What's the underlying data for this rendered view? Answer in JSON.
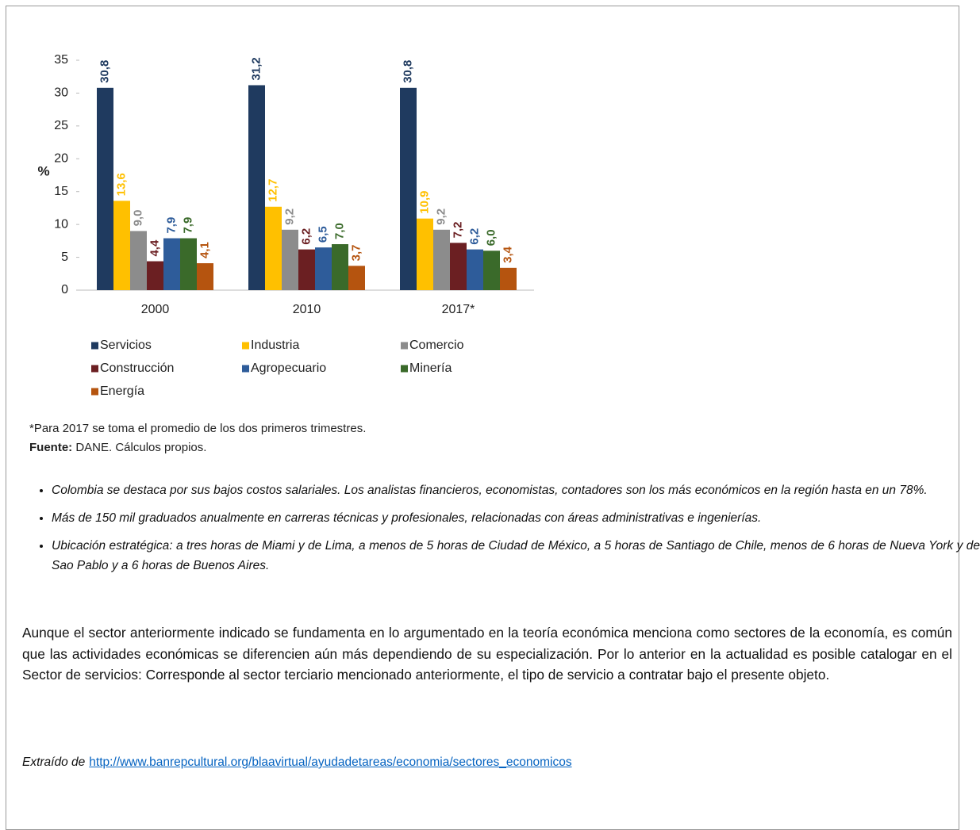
{
  "chart_data": {
    "type": "bar",
    "y_label": "%",
    "categories": [
      "2000",
      "2010",
      "2017*"
    ],
    "series": [
      {
        "name": "Servicios",
        "color": "#1f3a5f",
        "values": [
          30.8,
          31.2,
          30.8
        ],
        "value_labels": [
          "30,8",
          "31,2",
          "30,8"
        ]
      },
      {
        "name": "Industria",
        "color": "#ffc000",
        "values": [
          13.6,
          12.7,
          10.9
        ],
        "value_labels": [
          "13,6",
          "12,7",
          "10,9"
        ]
      },
      {
        "name": "Comercio",
        "color": "#8c8c8c",
        "values": [
          9.0,
          9.2,
          9.2
        ],
        "value_labels": [
          "9,0",
          "9,2",
          "9,2"
        ]
      },
      {
        "name": "Construcción",
        "color": "#6b1f22",
        "values": [
          4.4,
          6.2,
          7.2
        ],
        "value_labels": [
          "4,4",
          "6,2",
          "7,2"
        ]
      },
      {
        "name": "Agropecuario",
        "color": "#2e5c9a",
        "values": [
          7.9,
          6.5,
          6.2
        ],
        "value_labels": [
          "7,9",
          "6,5",
          "6,2"
        ]
      },
      {
        "name": "Minería",
        "color": "#3a6a2a",
        "values": [
          7.9,
          7.0,
          6.0
        ],
        "value_labels": [
          "7,9",
          "7,0",
          "6,0"
        ]
      },
      {
        "name": "Energía",
        "color": "#b5540f",
        "values": [
          4.1,
          3.7,
          3.4
        ],
        "value_labels": [
          "4,1",
          "3,7",
          "3,4"
        ]
      }
    ],
    "ylim": [
      0,
      35
    ],
    "yticks": [
      0,
      5,
      10,
      15,
      20,
      25,
      30,
      35
    ],
    "legend": "bottom"
  },
  "footnote": "*Para 2017 se toma el promedio de los dos primeros trimestres.",
  "source": {
    "label": "Fuente:",
    "text": "DANE. Cálculos propios."
  },
  "bullets": [
    "Colombia se destaca por sus bajos costos salariales. Los analistas financieros, economistas, contadores son los más económicos en la región hasta en un 78%.",
    "Más de 150 mil graduados anualmente en carreras técnicas y profesionales, relacionadas con áreas administrativas e ingenierías.",
    "Ubicación estratégica: a tres horas de Miami y de Lima, a menos de 5 horas de Ciudad de México, a 5 horas de Santiago de Chile, menos de 6 horas de Nueva York y de Sao Pablo y a 6 horas de Buenos Aires."
  ],
  "paragraph": "Aunque el sector anteriormente indicado se fundamenta en lo argumentado en la teoría económica menciona como sectores de la economía, es común que las actividades económicas se diferencien aún más dependiendo de su especialización. Por lo anterior en la actualidad es posible catalogar en el Sector de servicios: Corresponde al sector terciario mencionado anteriormente, el tipo de servicio a contratar bajo el presente objeto.",
  "citation": {
    "label": "Extraído de",
    "url": "http://www.banrepcultural.org/blaavirtual/ayudadetareas/economia/sectores_economicos"
  }
}
